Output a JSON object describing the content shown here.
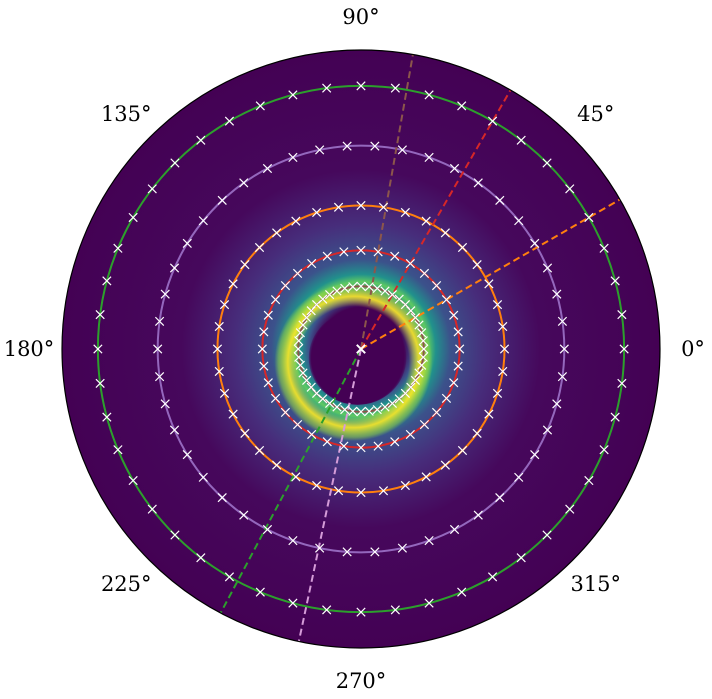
{
  "chart_data": {
    "type": "polar",
    "title": "",
    "radial_range": [
      0,
      1
    ],
    "radial_tick_labels": false,
    "grid": false,
    "angle_ticks": [
      {
        "deg": 0,
        "label": "0°"
      },
      {
        "deg": 45,
        "label": "45°"
      },
      {
        "deg": 90,
        "label": "90°"
      },
      {
        "deg": 135,
        "label": "135°"
      },
      {
        "deg": 180,
        "label": "180°"
      },
      {
        "deg": 225,
        "label": "225°"
      },
      {
        "deg": 270,
        "label": "270°"
      },
      {
        "deg": 315,
        "label": "315°"
      }
    ],
    "background": {
      "colormap": "viridis",
      "shape": "offset ring",
      "ring_radius": 0.23,
      "ring_width": 0.07,
      "inner_dark_radius": 0.16,
      "offset_center_r": 0.05,
      "offset_center_deg": 240,
      "bright_side_deg": 250
    },
    "circles": [
      {
        "radius": 0.21,
        "color": "#8c564b",
        "markers": 48
      },
      {
        "radius": 0.33,
        "color": "#d62728",
        "markers": 36
      },
      {
        "radius": 0.48,
        "color": "#ff7f0e",
        "markers": 40
      },
      {
        "radius": 0.68,
        "color": "#9467bd",
        "markers": 46
      },
      {
        "radius": 0.88,
        "color": "#2ca02c",
        "markers": 48
      }
    ],
    "rays": [
      {
        "angle_deg": 80,
        "color": "#8c564b",
        "length": 1.0
      },
      {
        "angle_deg": 60,
        "color": "#d62728",
        "length": 1.0
      },
      {
        "angle_deg": 30,
        "color": "#ff7f0e",
        "length": 1.0
      },
      {
        "angle_deg": 242,
        "color": "#2ca02c",
        "length": 1.0
      },
      {
        "angle_deg": 258,
        "color": "#d59cd8",
        "length": 1.0
      }
    ],
    "marker_style": {
      "symbol": "x",
      "color": "#ffffff"
    },
    "center_marker": {
      "symbol": "x",
      "color": "#ffffff"
    }
  }
}
